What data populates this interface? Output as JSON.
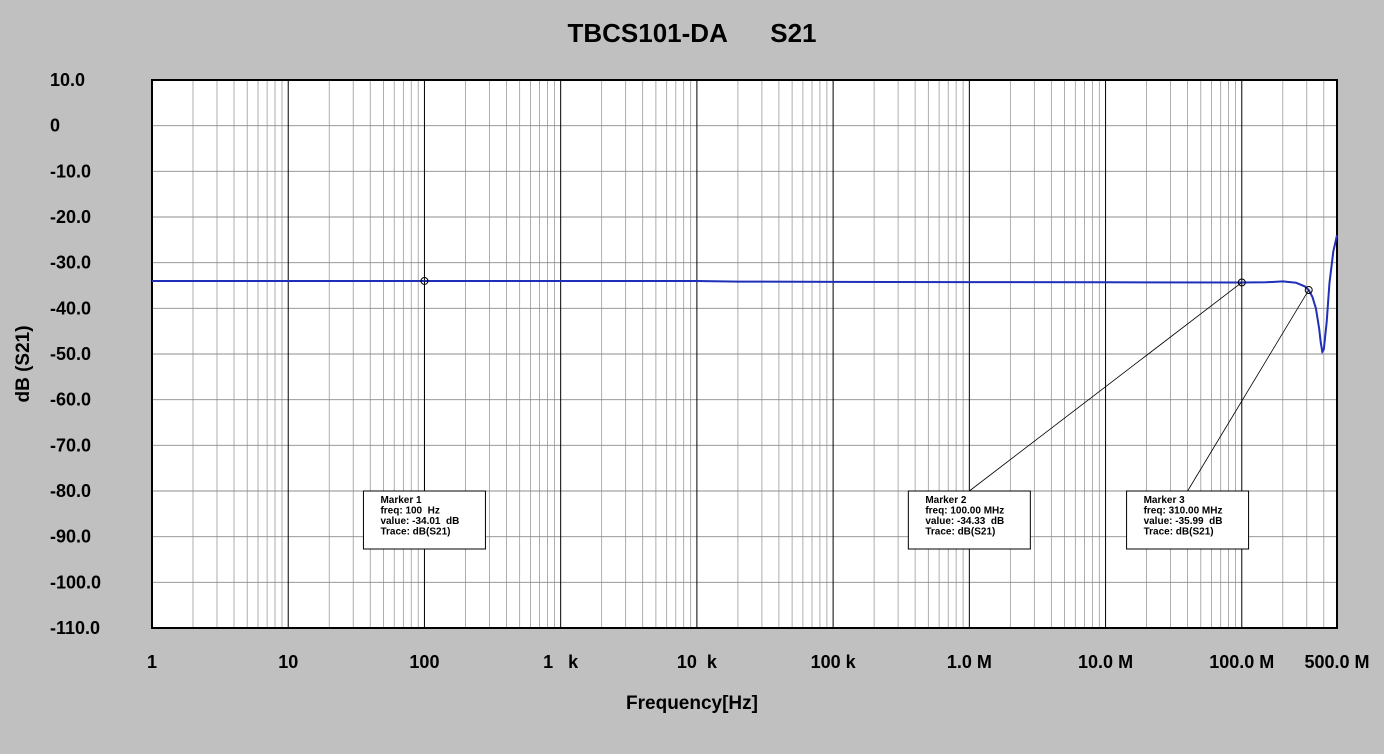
{
  "chart_data": {
    "type": "line",
    "title": "TBCS101-DA      S21",
    "xlabel": "Frequency[Hz]",
    "ylabel": "dB (S21)",
    "xscale": "log",
    "xlim": [
      1,
      500000000
    ],
    "ylim": [
      -110,
      10
    ],
    "grid": true,
    "legend": "none",
    "x_ticks": [
      {
        "value": 1,
        "label": "1"
      },
      {
        "value": 10,
        "label": "10"
      },
      {
        "value": 100,
        "label": "100"
      },
      {
        "value": 1000,
        "label": "1   k"
      },
      {
        "value": 10000,
        "label": "10  k"
      },
      {
        "value": 100000,
        "label": "100 k"
      },
      {
        "value": 1000000,
        "label": "1.0 M"
      },
      {
        "value": 10000000,
        "label": "10.0 M"
      },
      {
        "value": 100000000,
        "label": "100.0 M"
      },
      {
        "value": 500000000,
        "label": "500.0 M"
      }
    ],
    "y_ticks": [
      {
        "value": 10,
        "label": "10.0"
      },
      {
        "value": 0,
        "label": "0"
      },
      {
        "value": -10,
        "label": "-10.0"
      },
      {
        "value": -20,
        "label": "-20.0"
      },
      {
        "value": -30,
        "label": "-30.0"
      },
      {
        "value": -40,
        "label": "-40.0"
      },
      {
        "value": -50,
        "label": "-50.0"
      },
      {
        "value": -60,
        "label": "-60.0"
      },
      {
        "value": -70,
        "label": "-70.0"
      },
      {
        "value": -80,
        "label": "-80.0"
      },
      {
        "value": -90,
        "label": "-90.0"
      },
      {
        "value": -100,
        "label": "-100.0"
      },
      {
        "value": -110,
        "label": "-110.0"
      }
    ],
    "series": [
      {
        "color": "#1f2fb8",
        "x": [
          1,
          10,
          100,
          1000,
          10000,
          20000,
          100000,
          1000000,
          10000000,
          100000000,
          150000000,
          200000000,
          250000000,
          290000000,
          310000000,
          330000000,
          350000000,
          370000000,
          380000000,
          390000000,
          400000000,
          420000000,
          440000000,
          470000000,
          500000000
        ],
        "y": [
          -34.01,
          -34.01,
          -34.01,
          -34.01,
          -34.01,
          -34.15,
          -34.2,
          -34.25,
          -34.3,
          -34.33,
          -34.3,
          -34.1,
          -34.4,
          -35.2,
          -35.99,
          -37.5,
          -40.0,
          -44.5,
          -47.5,
          -49.5,
          -49.0,
          -43.0,
          -34.5,
          -27.5,
          -24.0
        ]
      }
    ],
    "markers": [
      {
        "x": 100,
        "y": -34.01,
        "label_anchor_x": 100,
        "label_anchor_y": -80,
        "lines": [
          "Marker 1",
          "freq: 100  Hz",
          "value: -34.01  dB",
          "Trace: dB(S21)"
        ]
      },
      {
        "x": 100000000,
        "y": -34.33,
        "label_anchor_x": 1000000,
        "label_anchor_y": -80,
        "lines": [
          "Marker 2",
          "freq: 100.00 MHz",
          "value: -34.33  dB",
          "Trace: dB(S21)"
        ]
      },
      {
        "x": 310000000,
        "y": -35.99,
        "label_anchor_x": 40000000,
        "label_anchor_y": -80,
        "lines": [
          "Marker 3",
          "freq: 310.00 MHz",
          "value: -35.99  dB",
          "Trace: dB(S21)"
        ]
      }
    ]
  }
}
